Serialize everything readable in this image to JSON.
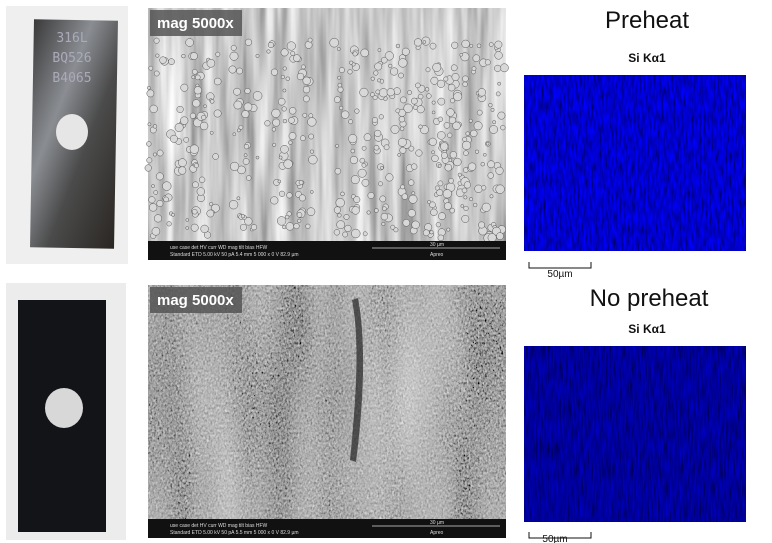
{
  "panels": [
    {
      "sample": {
        "lines": [
          "316L",
          "BQ526",
          "B4065"
        ]
      },
      "sem": {
        "mag": "mag 5000x",
        "databar_header": "use case   det   HV   curr   WD   mag   tilt   bias   HFW",
        "databar_values": "Standard  ETD  5.00 kV  50 pA  5.4 mm  5 000 x  0 V  82.9 µm",
        "scale": "30 µm",
        "brand": "Apreo"
      },
      "eds": {
        "title": "Preheat",
        "element": "Si Kα1",
        "scale": "50µm"
      }
    },
    {
      "sample": {
        "lines": []
      },
      "sem": {
        "mag": "mag 5000x",
        "databar_header": "use case   det   HV   curr   WD   mag   tilt   bias   HFW",
        "databar_values": "Standard  ETD  5.00 kV  50 pA  5.5 mm  5 000 x  0 V  82.9 µm",
        "scale": "30 µm",
        "brand": "Apreo"
      },
      "eds": {
        "title": "No preheat",
        "element": "Si Kα1",
        "scale": "50µm"
      }
    }
  ]
}
